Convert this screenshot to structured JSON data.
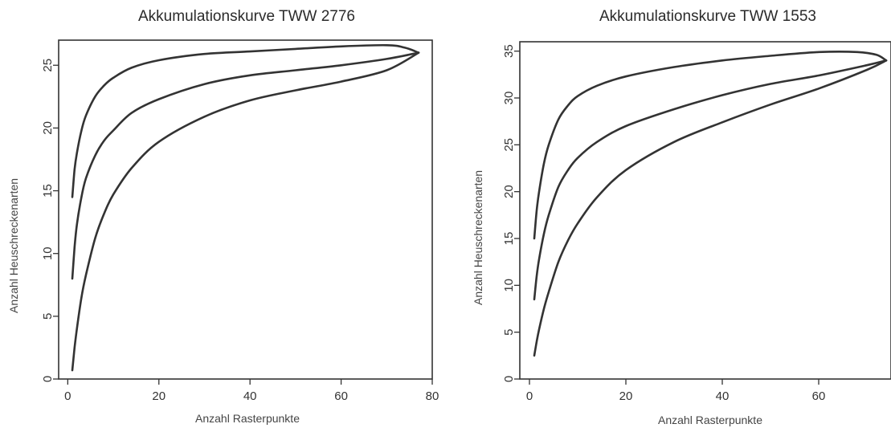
{
  "chart_data": [
    {
      "type": "line",
      "title": "Akkumulationskurve TWW 2776",
      "xlabel": "Anzahl Rasterpunkte",
      "ylabel": "Anzahl Heuschreckenarten",
      "xlim": [
        -2,
        80
      ],
      "ylim": [
        0,
        27
      ],
      "xticks": [
        0,
        20,
        40,
        60,
        80
      ],
      "yticks": [
        0,
        5,
        10,
        15,
        20,
        25
      ],
      "line_color": "#333333",
      "series": [
        {
          "x": [
            1,
            1.5,
            2,
            3,
            4,
            6,
            8,
            10,
            14,
            20,
            30,
            40,
            50,
            60,
            70,
            74,
            77
          ],
          "values": [
            14.5,
            16.7,
            18,
            19.8,
            21,
            22.5,
            23.4,
            24,
            24.8,
            25.4,
            25.9,
            26.1,
            26.3,
            26.5,
            26.6,
            26.4,
            26
          ]
        },
        {
          "x": [
            1,
            1.5,
            2,
            3,
            4,
            6,
            8,
            10,
            14,
            20,
            30,
            40,
            50,
            60,
            70,
            77
          ],
          "values": [
            8,
            10.5,
            12.3,
            14.5,
            16,
            17.8,
            19,
            19.8,
            21.2,
            22.3,
            23.5,
            24.2,
            24.6,
            25,
            25.5,
            26
          ]
        },
        {
          "x": [
            1,
            1.5,
            2,
            3,
            4,
            6,
            8,
            10,
            14,
            20,
            30,
            40,
            50,
            60,
            70,
            77
          ],
          "values": [
            0.7,
            2.5,
            4,
            6.5,
            8.3,
            11.2,
            13.2,
            14.7,
            16.8,
            18.9,
            20.9,
            22.2,
            23,
            23.7,
            24.6,
            26
          ]
        }
      ]
    },
    {
      "type": "line",
      "title": "Akkumulationskurve TWW 1553",
      "xlabel": "Anzahl Rasterpunkte",
      "ylabel": "Anzahl Heuschreckenarten",
      "xlim": [
        -2,
        75
      ],
      "ylim": [
        0,
        36
      ],
      "xticks": [
        0,
        20,
        40,
        60
      ],
      "yticks": [
        0,
        5,
        10,
        15,
        20,
        25,
        30,
        35
      ],
      "line_color": "#333333",
      "series": [
        {
          "x": [
            1,
            1.5,
            2,
            3,
            4,
            6,
            8,
            10,
            14,
            20,
            30,
            40,
            50,
            60,
            68,
            72,
            74
          ],
          "values": [
            15,
            18,
            20,
            23,
            25,
            27.7,
            29.2,
            30.2,
            31.3,
            32.3,
            33.3,
            34,
            34.5,
            34.9,
            34.9,
            34.6,
            34
          ]
        },
        {
          "x": [
            1,
            1.5,
            2,
            3,
            4,
            6,
            8,
            10,
            14,
            20,
            30,
            40,
            50,
            60,
            70,
            74
          ],
          "values": [
            8.5,
            11,
            12.8,
            15.5,
            17.5,
            20.5,
            22.3,
            23.6,
            25.3,
            27,
            28.8,
            30.3,
            31.5,
            32.4,
            33.5,
            34
          ]
        },
        {
          "x": [
            1,
            1.5,
            2,
            3,
            4,
            6,
            8,
            10,
            14,
            20,
            30,
            40,
            50,
            60,
            70,
            74
          ],
          "values": [
            2.5,
            4,
            5.3,
            7.5,
            9.3,
            12.5,
            14.8,
            16.6,
            19.4,
            22.3,
            25.3,
            27.4,
            29.3,
            31,
            33,
            34
          ]
        }
      ]
    }
  ]
}
